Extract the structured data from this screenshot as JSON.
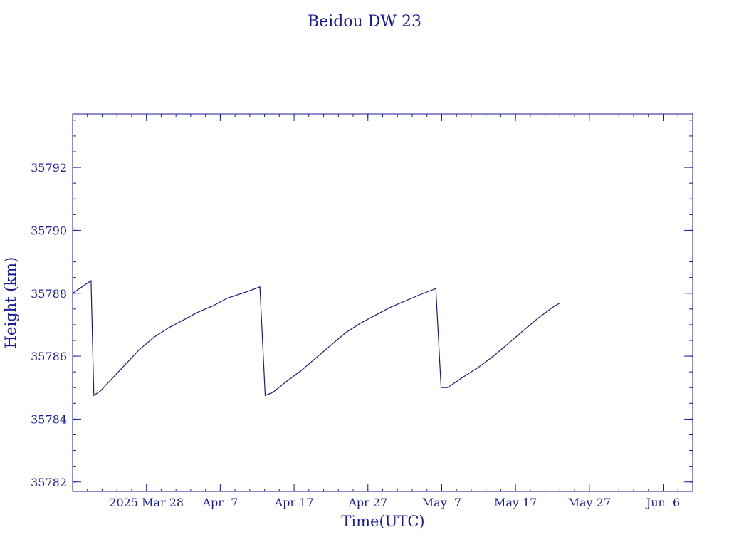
{
  "chart_data": {
    "type": "line",
    "title": "Beidou DW 23",
    "xlabel": "Time(UTC)",
    "ylabel": "Height (km)",
    "color": "#1a1a9c",
    "line_color": "#1a1a80",
    "grid": false,
    "xlim": [
      "2025-03-18T00:00",
      "2025-06-10T00:00"
    ],
    "ylim": [
      35781.7,
      35793.7
    ],
    "x_ticks": [
      {
        "date": "2025-03-28",
        "label": "2025 Mar 28"
      },
      {
        "date": "2025-04-07",
        "label": "Apr  7"
      },
      {
        "date": "2025-04-17",
        "label": "Apr 17"
      },
      {
        "date": "2025-04-27",
        "label": "Apr 27"
      },
      {
        "date": "2025-05-07",
        "label": "May  7"
      },
      {
        "date": "2025-05-17",
        "label": "May 17"
      },
      {
        "date": "2025-05-27",
        "label": "May 27"
      },
      {
        "date": "2025-06-06",
        "label": "Jun  6"
      }
    ],
    "y_ticks": [
      35782,
      35784,
      35786,
      35788,
      35790,
      35792
    ],
    "series": [
      {
        "x": [
          "2025-03-18T00:00",
          "2025-03-20T12:00",
          "2025-03-20T21:00",
          "2025-03-21T19:00",
          "2025-03-23T00:00",
          "2025-03-25T00:00",
          "2025-03-27T00:00",
          "2025-03-29T00:00",
          "2025-03-31T00:00",
          "2025-04-02T00:00",
          "2025-04-04T00:00",
          "2025-04-06T00:00",
          "2025-04-08T00:00",
          "2025-04-10T00:00",
          "2025-04-12T09:00",
          "2025-04-13T02:00",
          "2025-04-14T03:00",
          "2025-04-16T00:00",
          "2025-04-18T00:00",
          "2025-04-20T00:00",
          "2025-04-22T00:00",
          "2025-04-24T00:00",
          "2025-04-26T00:00",
          "2025-04-28T00:00",
          "2025-04-30T00:00",
          "2025-05-02T00:00",
          "2025-05-04T00:00",
          "2025-05-06T05:00",
          "2025-05-06T22:00",
          "2025-05-07T19:00",
          "2025-05-10T00:00",
          "2025-05-12T00:00",
          "2025-05-14T00:00",
          "2025-05-16T00:00",
          "2025-05-18T00:00",
          "2025-05-20T00:00",
          "2025-05-22T00:00",
          "2025-05-23T02:00"
        ],
        "y": [
          35788.0,
          35788.4,
          35784.75,
          35784.9,
          35785.2,
          35785.7,
          35786.2,
          35786.6,
          35786.9,
          35787.15,
          35787.4,
          35787.6,
          35787.85,
          35788.0,
          35788.2,
          35784.75,
          35784.85,
          35785.2,
          35785.55,
          35785.95,
          35786.35,
          35786.75,
          35787.05,
          35787.3,
          35787.55,
          35787.75,
          35787.95,
          35788.15,
          35785.0,
          35785.0,
          35785.35,
          35785.65,
          35786.0,
          35786.4,
          35786.8,
          35787.2,
          35787.55,
          35787.7
        ]
      }
    ]
  }
}
